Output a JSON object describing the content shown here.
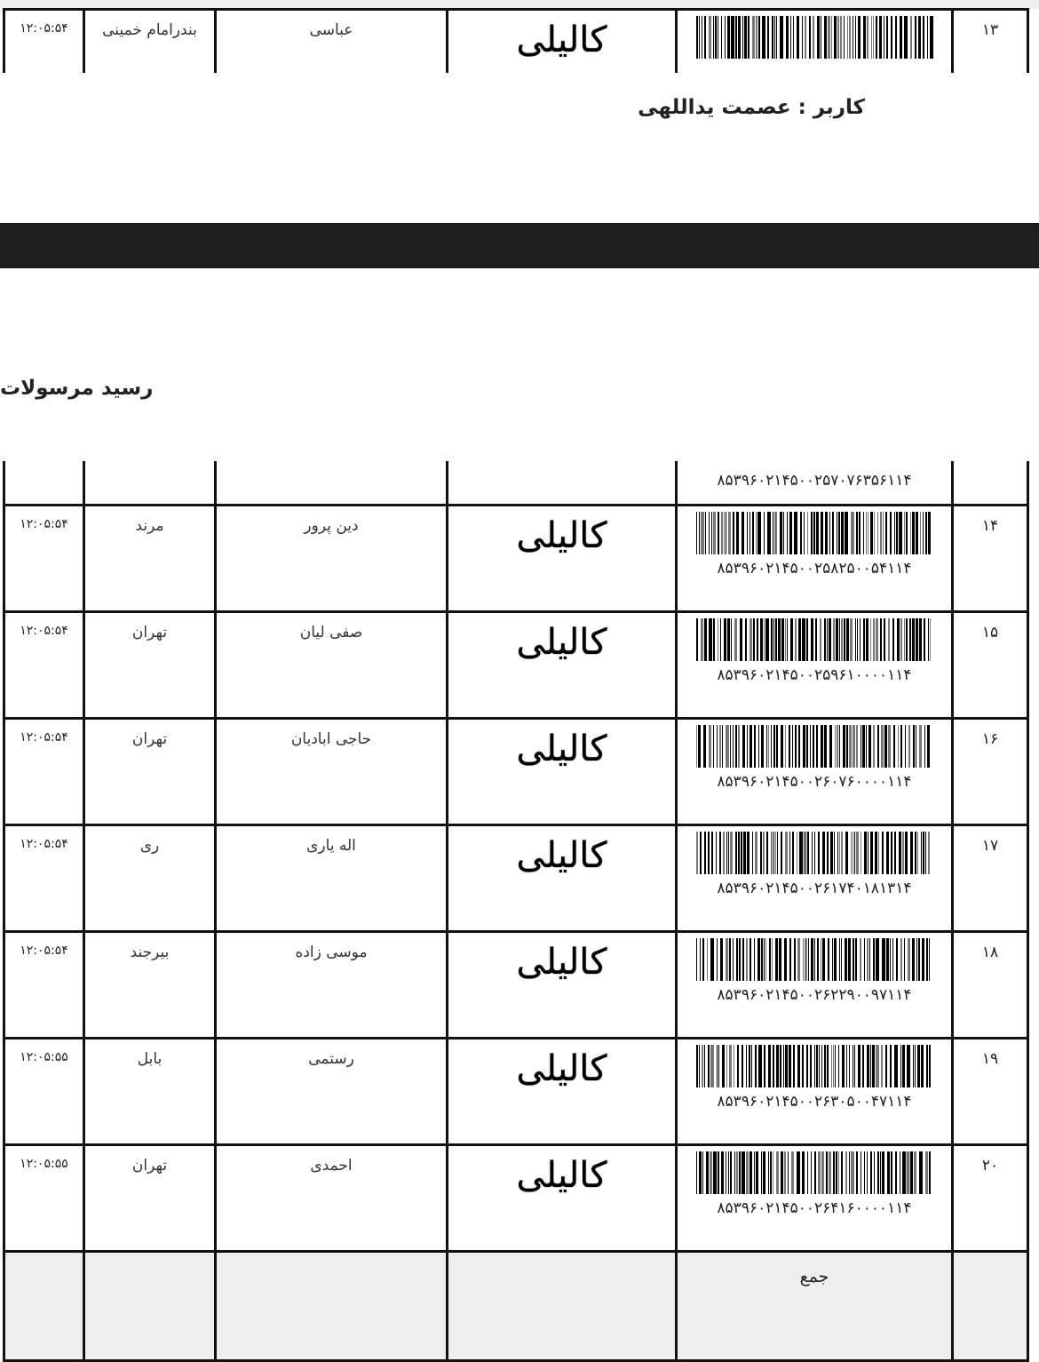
{
  "first_row": {
    "time": "۱۲:۰۵:۵۴",
    "city": "بندرامام خمینی",
    "name": "عباسی",
    "carrier": "کالیلی",
    "number": "۱۳"
  },
  "user_label": "کاربر : عصمت یداللهی",
  "title": "رسید مرسولات",
  "partial_row_code": "۸۵۳۹۶۰۲۱۴۵۰۰۲۵۷۰۷۶۳۵۶۱۱۴",
  "rows": [
    {
      "number": "۱۴",
      "code": "۸۵۳۹۶۰۲۱۴۵۰۰۲۵۸۲۵۰۰۵۴۱۱۴",
      "carrier": "کالیلی",
      "name": "دین پرور",
      "city": "مرند",
      "time": "۱۲:۰۵:۵۴"
    },
    {
      "number": "۱۵",
      "code": "۸۵۳۹۶۰۲۱۴۵۰۰۲۵۹۶۱۰۰۰۰۱۱۴",
      "carrier": "کالیلی",
      "name": "صفی لیان",
      "city": "تهران",
      "time": "۱۲:۰۵:۵۴"
    },
    {
      "number": "۱۶",
      "code": "۸۵۳۹۶۰۲۱۴۵۰۰۲۶۰۷۶۰۰۰۰۱۱۴",
      "carrier": "کالیلی",
      "name": "حاجی ابادیان",
      "city": "تهران",
      "time": "۱۲:۰۵:۵۴"
    },
    {
      "number": "۱۷",
      "code": "۸۵۳۹۶۰۲۱۴۵۰۰۲۶۱۷۴۰۱۸۱۳۱۴",
      "carrier": "کالیلی",
      "name": "اله یاری",
      "city": "ری",
      "time": "۱۲:۰۵:۵۴"
    },
    {
      "number": "۱۸",
      "code": "۸۵۳۹۶۰۲۱۴۵۰۰۲۶۲۲۹۰۰۹۷۱۱۴",
      "carrier": "کالیلی",
      "name": "موسی زاده",
      "city": "بیرجند",
      "time": "۱۲:۰۵:۵۴"
    },
    {
      "number": "۱۹",
      "code": "۸۵۳۹۶۰۲۱۴۵۰۰۲۶۳۰۵۰۰۴۷۱۱۴",
      "carrier": "کالیلی",
      "name": "رستمی",
      "city": "بابل",
      "time": "۱۲:۰۵:۵۵"
    },
    {
      "number": "۲۰",
      "code": "۸۵۳۹۶۰۲۱۴۵۰۰۲۶۴۱۶۰۰۰۰۱۱۴",
      "carrier": "کالیلی",
      "name": "احمدی",
      "city": "تهران",
      "time": "۱۲:۰۵:۵۵"
    }
  ],
  "total_label": "جمع"
}
